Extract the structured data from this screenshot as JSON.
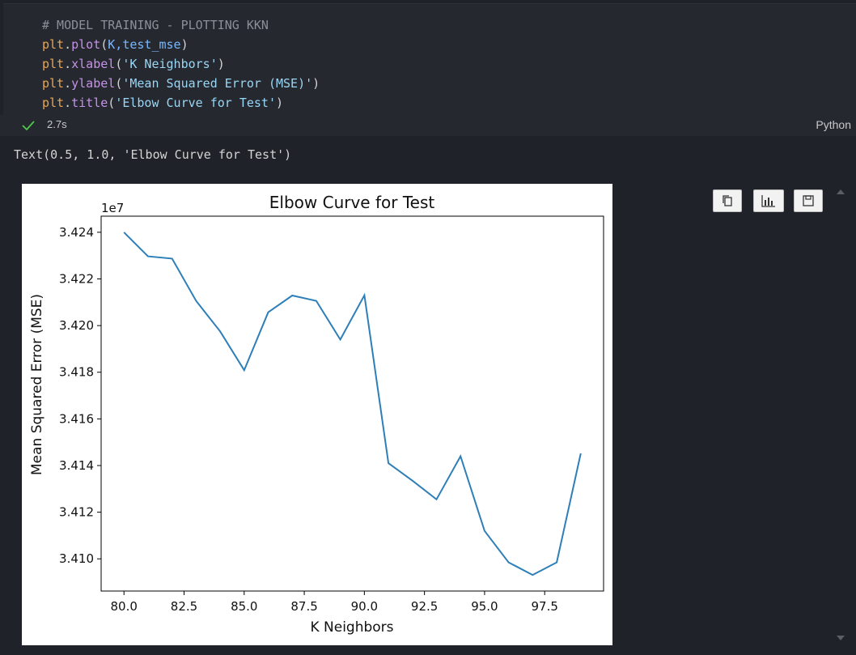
{
  "cell": {
    "comment": "# MODEL TRAINING - PLOTTING KKN",
    "lines": [
      {
        "obj": "plt",
        "fn": "plot",
        "args": "K,test_mse"
      },
      {
        "obj": "plt",
        "fn": "xlabel",
        "args": "'K Neighbors'"
      },
      {
        "obj": "plt",
        "fn": "ylabel",
        "args": "'Mean Squared Error (MSE)'"
      },
      {
        "obj": "plt",
        "fn": "title",
        "args": "'Elbow Curve for Test'"
      }
    ],
    "status_time": "2.7s",
    "language": "Python",
    "success_color": "#4ec94e"
  },
  "output": {
    "text": "Text(0.5, 1.0, 'Elbow Curve for Test')"
  },
  "toolbar": {
    "buttons": [
      "copy-icon",
      "bar-chart-icon",
      "save-icon"
    ]
  },
  "chart_data": {
    "type": "line",
    "title": "Elbow Curve for Test",
    "xlabel": "K Neighbors",
    "ylabel": "Mean Squared Error (MSE)",
    "y_offset_label": "1e7",
    "x": [
      80,
      81,
      82,
      83,
      84,
      85,
      86,
      87,
      88,
      89,
      90,
      91,
      92,
      93,
      94,
      95,
      96,
      97,
      98,
      99
    ],
    "series": [
      {
        "values": [
          3.424,
          3.42297,
          3.42287,
          3.42106,
          3.41975,
          3.41809,
          3.42057,
          3.42129,
          3.42106,
          3.4194,
          3.4213,
          3.4141,
          3.41335,
          3.41255,
          3.4144,
          3.4112,
          3.40985,
          3.40931,
          3.40985,
          3.41452
        ],
        "color": "#2e7fb8"
      }
    ],
    "x_ticks": [
      "80.0",
      "82.5",
      "85.0",
      "87.5",
      "90.0",
      "92.5",
      "95.0",
      "97.5"
    ],
    "x_tick_values": [
      80,
      82.5,
      85,
      87.5,
      90,
      92.5,
      95,
      97.5
    ],
    "y_ticks": [
      "3.424",
      "3.422",
      "3.420",
      "3.418",
      "3.416",
      "3.414",
      "3.412",
      "3.410"
    ],
    "y_tick_values": [
      3.424,
      3.422,
      3.42,
      3.418,
      3.416,
      3.414,
      3.412,
      3.41
    ],
    "xlim": [
      79.05,
      99.95
    ],
    "ylim": [
      3.40862,
      3.42469
    ],
    "grid": false
  }
}
